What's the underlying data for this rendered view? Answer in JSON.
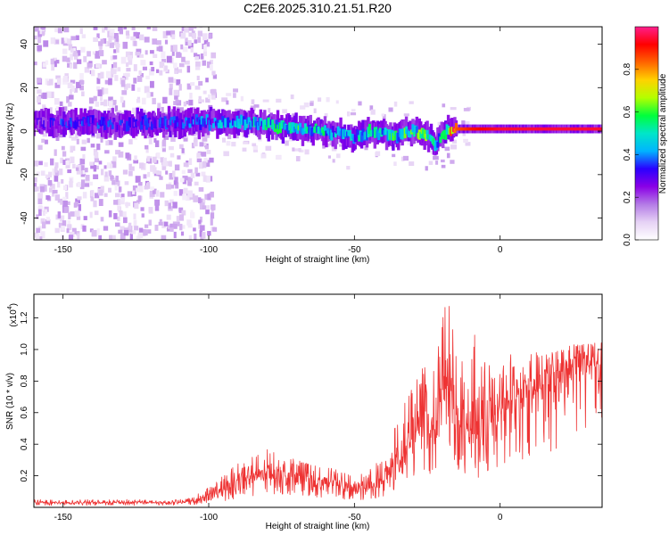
{
  "figure_title": "C2E6.2025.310.21.51.R20",
  "chart_data": [
    {
      "type": "heatmap",
      "title": "C2E6.2025.310.21.51.R20",
      "xlabel": "Height of straight line (km)",
      "ylabel": "Frequency (Hz)",
      "xlim": [
        -160,
        35
      ],
      "ylim": [
        -50,
        48
      ],
      "x_ticks": [
        -150,
        -100,
        -50,
        0
      ],
      "y_ticks": [
        -40,
        -20,
        0,
        20,
        40
      ],
      "grid": false,
      "colorbar": {
        "label": "Normalized spectral amplitude",
        "range": [
          0.0,
          1.0
        ],
        "ticks": [
          0.0,
          0.2,
          0.4,
          0.6,
          0.8
        ],
        "tick_labels": [
          "0.0",
          "0.2",
          "0.4",
          "0.6",
          "0.8"
        ],
        "colormap": [
          "#ffffff",
          "#e6d2f5",
          "#b47be6",
          "#8a00e6",
          "#2a00ff",
          "#00b4ff",
          "#00e6c8",
          "#00ff3c",
          "#b4ff00",
          "#ffd200",
          "#ff6400",
          "#ff0000",
          "#ff1e8c"
        ]
      },
      "ridge": {
        "x": [
          -158,
          -150,
          -140,
          -130,
          -120,
          -110,
          -100,
          -90,
          -80,
          -70,
          -60,
          -55,
          -50,
          -45,
          -40,
          -35,
          -30,
          -25,
          -22,
          -20,
          -18,
          -15,
          -10,
          0,
          10,
          20,
          35
        ],
        "frequency": [
          4,
          4,
          4,
          3,
          4,
          4,
          4,
          4,
          3,
          1,
          0,
          -1,
          -3,
          0,
          -1,
          -2,
          0,
          -2,
          -6,
          -3,
          0,
          1,
          1,
          1,
          1,
          1,
          1
        ],
        "amplitude": [
          0.25,
          0.3,
          0.3,
          0.3,
          0.3,
          0.3,
          0.35,
          0.4,
          0.45,
          0.5,
          0.45,
          0.4,
          0.4,
          0.45,
          0.45,
          0.5,
          0.5,
          0.55,
          0.4,
          0.45,
          0.6,
          0.85,
          0.9,
          0.95,
          0.95,
          0.95,
          0.95
        ]
      }
    },
    {
      "type": "line",
      "title": "",
      "xlabel": "Height of straight line (km)",
      "ylabel": "SNR (10 * v/v)",
      "y_multiplier_label": "(x10",
      "y_multiplier_exponent": "4",
      "xlim": [
        -160,
        35
      ],
      "ylim": [
        0,
        1.35
      ],
      "x_ticks": [
        -150,
        -100,
        -50,
        0
      ],
      "y_ticks": [
        0.2,
        0.4,
        0.6,
        0.8,
        1.0,
        1.2
      ],
      "y_tick_labels": [
        "0.2",
        "0.4",
        "0.6",
        "0.8",
        "1.0",
        "1.2"
      ],
      "grid": false,
      "series": [
        {
          "color": "#ee3333",
          "x": [
            -160,
            -150,
            -140,
            -130,
            -120,
            -110,
            -105,
            -100,
            -95,
            -90,
            -85,
            -80,
            -75,
            -70,
            -65,
            -60,
            -55,
            -50,
            -45,
            -40,
            -38,
            -35,
            -32,
            -30,
            -28,
            -25,
            -22,
            -20,
            -18,
            -17,
            -16,
            -15,
            -14,
            -12,
            -10,
            -8,
            -6,
            -4,
            -2,
            0,
            2,
            5,
            10,
            15,
            20,
            25,
            30,
            35
          ],
          "values": [
            0.03,
            0.03,
            0.03,
            0.03,
            0.03,
            0.03,
            0.04,
            0.07,
            0.1,
            0.13,
            0.17,
            0.22,
            0.2,
            0.18,
            0.16,
            0.15,
            0.14,
            0.1,
            0.12,
            0.16,
            0.22,
            0.3,
            0.36,
            0.42,
            0.48,
            0.46,
            0.52,
            0.62,
            0.82,
            0.95,
            0.7,
            0.6,
            0.55,
            0.52,
            0.5,
            0.48,
            0.45,
            0.5,
            0.58,
            0.62,
            0.66,
            0.72,
            0.8,
            0.86,
            0.92,
            0.97,
            1.0,
            1.02
          ],
          "spike_envelope": [
            0.05,
            0.05,
            0.05,
            0.05,
            0.05,
            0.05,
            0.07,
            0.14,
            0.2,
            0.28,
            0.32,
            0.4,
            0.34,
            0.3,
            0.28,
            0.26,
            0.24,
            0.2,
            0.24,
            0.32,
            0.45,
            0.58,
            0.7,
            0.8,
            0.9,
            0.88,
            1.02,
            1.25,
            1.33,
            1.3,
            1.08,
            1.0,
            0.95,
            0.9,
            1.0,
            1.15,
            0.98,
            0.92,
            0.95,
            0.98,
            0.96,
            0.98,
            0.98,
            0.98,
            1.0,
            1.03,
            1.04,
            1.05
          ]
        }
      ]
    }
  ]
}
